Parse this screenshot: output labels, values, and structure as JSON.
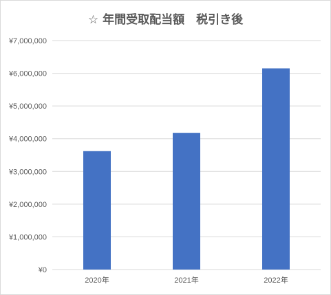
{
  "chart_data": {
    "type": "bar",
    "title": "☆ 年間受取配当額　税引き後",
    "xlabel": "",
    "ylabel": "",
    "categories": [
      "2020年",
      "2021年",
      "2022年"
    ],
    "values": [
      3620000,
      4180000,
      6150000
    ],
    "ylim": [
      0,
      7000000
    ],
    "yticks": [
      "¥0",
      "¥1,000,000",
      "¥2,000,000",
      "¥3,000,000",
      "¥4,000,000",
      "¥5,000,000",
      "¥6,000,000",
      "¥7,000,000"
    ],
    "ytick_values": [
      0,
      1000000,
      2000000,
      3000000,
      4000000,
      5000000,
      6000000,
      7000000
    ],
    "grid": true,
    "legend": "none",
    "bar_color": "#4472c4",
    "grid_color": "#d9d9d9"
  }
}
